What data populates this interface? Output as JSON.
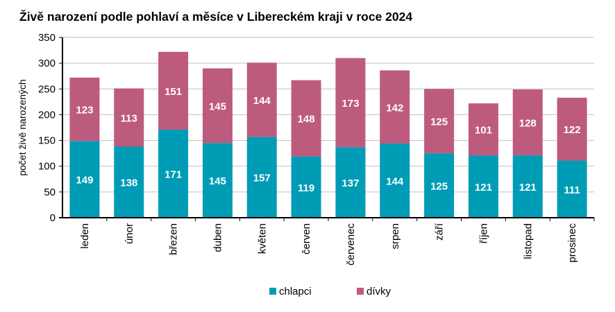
{
  "chart_data": {
    "type": "bar",
    "stacked": true,
    "title": "Živě narození podle pohlaví a měsíce v Libereckém kraji v roce 2024",
    "xlabel": "",
    "ylabel": "počet živě narozených",
    "ylim": [
      0,
      350
    ],
    "yticks": [
      0,
      50,
      100,
      150,
      200,
      250,
      300,
      350
    ],
    "grid": true,
    "legend_position": "bottom",
    "categories": [
      "leden",
      "únor",
      "březen",
      "duben",
      "květen",
      "červen",
      "červenec",
      "srpen",
      "září",
      "říjen",
      "listopad",
      "prosinec"
    ],
    "series": [
      {
        "name": "chlapci",
        "color": "#009cb5",
        "values": [
          149,
          138,
          171,
          145,
          157,
          119,
          137,
          144,
          125,
          121,
          121,
          111
        ]
      },
      {
        "name": "dívky",
        "color": "#bd5b7e",
        "values": [
          123,
          113,
          151,
          145,
          144,
          148,
          173,
          142,
          125,
          101,
          128,
          122
        ]
      }
    ]
  }
}
